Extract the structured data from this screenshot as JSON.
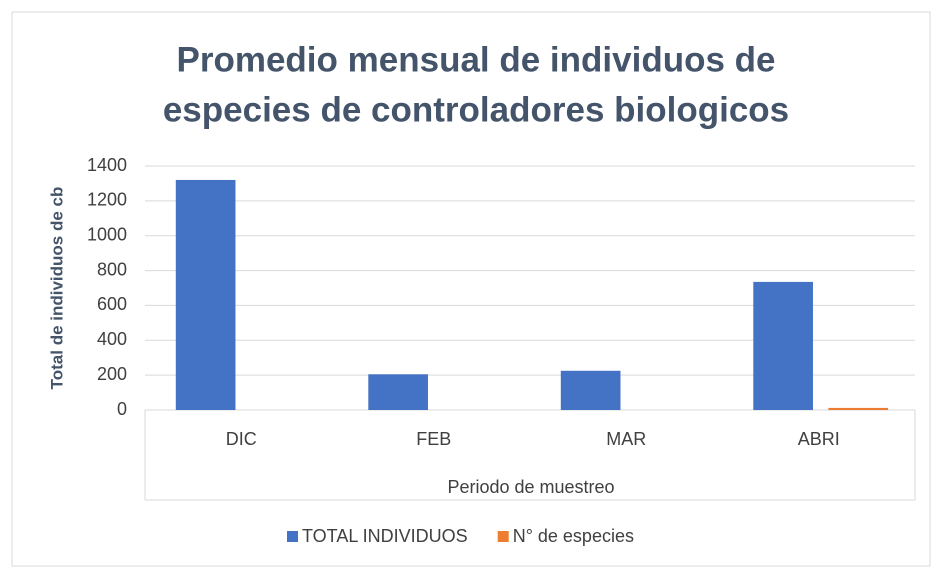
{
  "chart_data": {
    "type": "bar",
    "title": [
      "Promedio mensual de individuos de",
      "especies de controladores biologicos"
    ],
    "y_label": "Total de individuos de cb",
    "x_label": "Periodo de muestreo",
    "categories": [
      "DIC",
      "FEB",
      "MAR",
      "ABRI"
    ],
    "series": [
      {
        "name": "TOTAL INDIVIDUOS",
        "color": "#4472c4",
        "values": [
          1320,
          205,
          225,
          735
        ]
      },
      {
        "name": "N° de especies",
        "color": "#ed7d31",
        "values": [
          0,
          0,
          0,
          12
        ]
      }
    ],
    "ylim": [
      0,
      1400
    ],
    "yticks": [
      0,
      200,
      400,
      600,
      800,
      1000,
      1200,
      1400
    ],
    "grid": true
  }
}
